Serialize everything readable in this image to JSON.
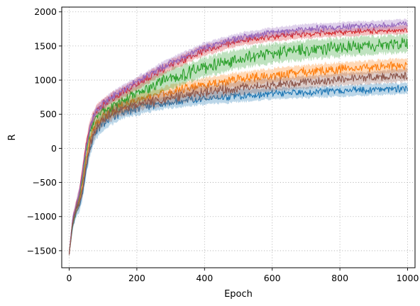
{
  "chart_data": {
    "type": "line",
    "title": "",
    "xlabel": "Epoch",
    "ylabel": "R",
    "xlim": [
      -22,
      1022
    ],
    "ylim": [
      -1750,
      2070
    ],
    "xticks": [
      0,
      200,
      400,
      600,
      800,
      1000
    ],
    "yticks": [
      -1500,
      -1000,
      -500,
      0,
      500,
      1000,
      1500,
      2000
    ],
    "xtick_labels": [
      "0",
      "200",
      "400",
      "600",
      "800",
      "1000"
    ],
    "ytick_labels": [
      "−1500",
      "−1000",
      "−500",
      "0",
      "500",
      "1000",
      "1500",
      "2000"
    ],
    "grid": true,
    "legend": "none",
    "series": [
      {
        "color": "#1f77b4",
        "x": [
          0,
          10,
          20,
          30,
          40,
          50,
          60,
          70,
          80,
          100,
          125,
          150,
          200,
          250,
          300,
          400,
          500,
          600,
          700,
          800,
          900,
          1000
        ],
        "values": [
          -1550,
          -1150,
          -950,
          -850,
          -650,
          -300,
          -50,
          150,
          250,
          380,
          460,
          520,
          590,
          640,
          680,
          730,
          770,
          800,
          820,
          840,
          860,
          880
        ],
        "band": [
          40,
          60,
          70,
          80,
          90,
          110,
          110,
          110,
          110,
          110,
          110,
          100,
          100,
          90,
          90,
          90,
          90,
          80,
          80,
          80,
          80,
          80
        ]
      },
      {
        "color": "#ff7f0e",
        "x": [
          0,
          10,
          20,
          30,
          40,
          50,
          60,
          70,
          80,
          100,
          125,
          150,
          200,
          250,
          300,
          400,
          500,
          600,
          700,
          800,
          900,
          1000
        ],
        "values": [
          -1550,
          -1100,
          -900,
          -750,
          -500,
          -150,
          100,
          250,
          350,
          470,
          550,
          610,
          700,
          760,
          830,
          930,
          1010,
          1070,
          1120,
          1160,
          1190,
          1220
        ],
        "band": [
          40,
          60,
          70,
          80,
          90,
          100,
          100,
          100,
          100,
          100,
          100,
          100,
          100,
          100,
          100,
          100,
          100,
          100,
          100,
          100,
          100,
          100
        ]
      },
      {
        "color": "#2ca02c",
        "x": [
          0,
          10,
          20,
          30,
          40,
          50,
          60,
          70,
          80,
          100,
          125,
          150,
          200,
          250,
          300,
          400,
          500,
          600,
          700,
          800,
          900,
          1000
        ],
        "values": [
          -1550,
          -1100,
          -900,
          -700,
          -400,
          -50,
          200,
          350,
          450,
          550,
          620,
          680,
          800,
          920,
          1020,
          1190,
          1310,
          1390,
          1440,
          1480,
          1510,
          1540
        ],
        "band": [
          40,
          60,
          70,
          80,
          90,
          100,
          100,
          100,
          110,
          120,
          120,
          130,
          130,
          140,
          140,
          140,
          140,
          140,
          140,
          130,
          130,
          130
        ]
      },
      {
        "color": "#d62728",
        "x": [
          0,
          10,
          20,
          30,
          40,
          50,
          60,
          70,
          80,
          100,
          125,
          150,
          200,
          250,
          300,
          400,
          500,
          600,
          700,
          800,
          900,
          1000
        ],
        "values": [
          -1550,
          -1050,
          -850,
          -650,
          -300,
          50,
          300,
          450,
          550,
          650,
          730,
          800,
          940,
          1080,
          1220,
          1440,
          1570,
          1640,
          1680,
          1700,
          1720,
          1740
        ],
        "band": [
          40,
          60,
          70,
          80,
          90,
          80,
          80,
          80,
          80,
          80,
          80,
          80,
          80,
          80,
          80,
          80,
          70,
          70,
          70,
          60,
          60,
          60
        ]
      },
      {
        "color": "#9467bd",
        "x": [
          0,
          10,
          20,
          30,
          40,
          50,
          60,
          70,
          80,
          100,
          125,
          150,
          200,
          250,
          300,
          400,
          500,
          600,
          700,
          800,
          900,
          1000
        ],
        "values": [
          -1550,
          -1050,
          -850,
          -650,
          -350,
          0,
          270,
          430,
          540,
          660,
          750,
          830,
          980,
          1120,
          1260,
          1480,
          1620,
          1700,
          1750,
          1780,
          1800,
          1820
        ],
        "band": [
          40,
          60,
          70,
          80,
          90,
          70,
          70,
          70,
          70,
          70,
          70,
          70,
          70,
          70,
          70,
          70,
          70,
          70,
          70,
          70,
          70,
          70
        ]
      },
      {
        "color": "#8c564b",
        "x": [
          0,
          10,
          20,
          30,
          40,
          50,
          60,
          70,
          80,
          100,
          125,
          150,
          200,
          250,
          300,
          400,
          500,
          600,
          700,
          800,
          900,
          1000
        ],
        "values": [
          -1550,
          -1100,
          -900,
          -800,
          -600,
          -250,
          0,
          200,
          300,
          430,
          510,
          570,
          640,
          690,
          740,
          820,
          880,
          930,
          970,
          1010,
          1040,
          1070
        ],
        "band": [
          40,
          60,
          70,
          80,
          90,
          100,
          100,
          100,
          100,
          100,
          100,
          100,
          100,
          100,
          100,
          100,
          100,
          100,
          90,
          90,
          90,
          90
        ]
      }
    ]
  }
}
